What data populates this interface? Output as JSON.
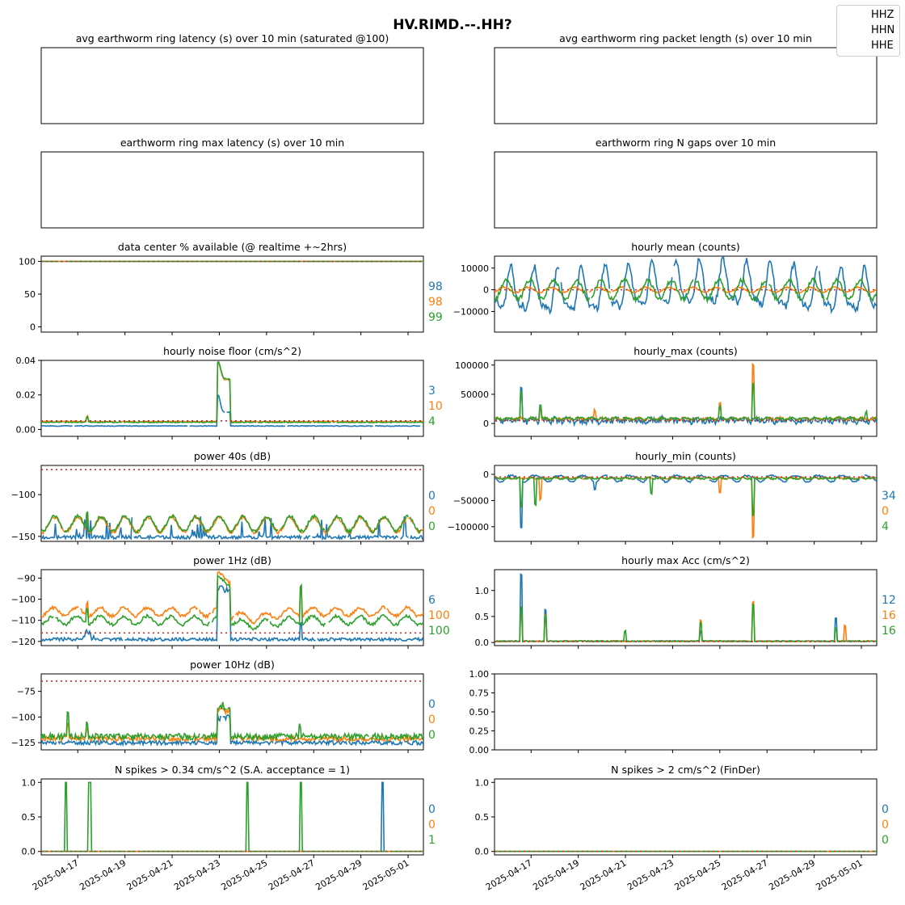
{
  "title": "HV.RIMD.--.HH?",
  "legend": [
    "HHZ",
    "HHN",
    "HHE"
  ],
  "colors": {
    "HHZ": "#1f77b4",
    "HHN": "#ff7f0e",
    "HHE": "#2ca02c",
    "threshold": "#d62728"
  },
  "x_ticks": [
    "2025-04-17",
    "2025-04-19",
    "2025-04-21",
    "2025-04-23",
    "2025-04-25",
    "2025-04-27",
    "2025-04-29",
    "2025-05-01"
  ],
  "chart_data": [
    {
      "id": "p0",
      "title": "avg earthworm ring latency (s)   over 10 min (saturated @100)",
      "type": "line",
      "empty": true,
      "show_ticks": false,
      "summary": []
    },
    {
      "id": "p1",
      "title": "avg earthworm ring packet length (s)   over 10 min",
      "type": "line",
      "empty": true,
      "show_ticks": false,
      "summary": []
    },
    {
      "id": "p2",
      "title": "earthworm ring max latency (s)   over 10 min",
      "type": "line",
      "empty": true,
      "show_ticks": false,
      "summary": []
    },
    {
      "id": "p3",
      "title": "earthworm ring N gaps   over 10 min",
      "type": "line",
      "empty": true,
      "show_ticks": false,
      "summary": []
    },
    {
      "id": "p4",
      "title": "data center % available (@ realtime +~2hrs)",
      "type": "line",
      "ylim": [
        -8,
        108
      ],
      "yticks": [
        0,
        50,
        100
      ],
      "ytick_labels": [
        "0",
        "50",
        "100"
      ],
      "threshold": 100,
      "summary": [
        "98",
        "98",
        "99"
      ],
      "series_desc": {
        "HHZ": "≈100 flat",
        "HHN": "≈100 flat",
        "HHE": "≈100 flat"
      }
    },
    {
      "id": "p5",
      "title": "hourly mean (counts)",
      "type": "line",
      "ylim": [
        -19500,
        15500
      ],
      "yticks": [
        -10000,
        0,
        10000
      ],
      "ytick_labels": [
        "−10000",
        "0",
        "10000"
      ],
      "threshold": 0,
      "summary": [],
      "series_desc": {
        "HHZ": "daily oscillation ±12000",
        "HHN": "near 0 ±1500",
        "HHE": "daily oscillation ±6000"
      }
    },
    {
      "id": "p6",
      "title": "hourly noise floor (cm/s^2)",
      "type": "line",
      "ylim": [
        -0.004,
        0.04
      ],
      "yticks": [
        0.0,
        0.02,
        0.04
      ],
      "ytick_labels": [
        "0.00",
        "0.02",
        "0.04"
      ],
      "threshold": 0.005,
      "summary": [
        "3",
        "10",
        "4"
      ],
      "series_desc": {
        "HHZ": "≈0.002, peak 0.018 on 2025-04-22",
        "HHN": "≈0.0045, peak 0.037 on 2025-04-22",
        "HHE": "≈0.004, peak 0.038 on 2025-04-22"
      }
    },
    {
      "id": "p7",
      "title": "hourly_max (counts)",
      "type": "line",
      "ylim": [
        -22000,
        108000
      ],
      "yticks": [
        0,
        50000,
        100000
      ],
      "ytick_labels": [
        "0",
        "50000",
        "100000"
      ],
      "threshold": 5000,
      "summary": [],
      "series_desc": {
        "HHZ": "≈0–10000, peak 60000 on 2025-04-16",
        "HHN": "≈5000, peak 98000 on 2025-04-26",
        "HHE": "≈5000, peak 65000 on 2025-04-26"
      }
    },
    {
      "id": "p8",
      "title": "power 40s (dB)",
      "type": "line",
      "ylim": [
        -156,
        -65
      ],
      "yticks": [
        -100,
        -150
      ],
      "ytick_labels": [
        "−100",
        "−150"
      ],
      "threshold": -70,
      "summary": [
        "0",
        "0",
        "0"
      ],
      "series_desc": {
        "HHZ": "≈−150 with spikes to −115",
        "HHN": "daily cycle −145 to −125",
        "HHE": "daily cycle −145 to −125"
      }
    },
    {
      "id": "p9",
      "title": "hourly_min (counts)",
      "type": "line",
      "ylim": [
        -128000,
        17000
      ],
      "yticks": [
        0,
        -50000,
        -100000
      ],
      "ytick_labels": [
        "0",
        "−50000",
        "−100000"
      ],
      "threshold": -5000,
      "summary": [
        "34",
        "0",
        "4"
      ],
      "series_desc": {
        "HHZ": "≈−5000, dip −95000 on 2025-04-16",
        "HHN": "≈−5000, dip −118000 on 2025-04-26",
        "HHE": "≈−5000, dip −75000 on 2025-04-26"
      }
    },
    {
      "id": "p10",
      "title": "power 1Hz (dB)",
      "type": "line",
      "ylim": [
        -122,
        -86
      ],
      "yticks": [
        -90,
        -100,
        -110,
        -120
      ],
      "ytick_labels": [
        "−90",
        "−100",
        "−110",
        "−120"
      ],
      "threshold": -116,
      "summary": [
        "6",
        "100",
        "100"
      ],
      "series_desc": {
        "HHZ": "≈−119, peak −93 on 2025-04-22",
        "HHN": "≈−106, peak −89 on 2025-04-22",
        "HHE": "≈−110, peak −91 on 2025-04-22"
      }
    },
    {
      "id": "p11",
      "title": "hourly max Acc (cm/s^2)",
      "type": "line",
      "ylim": [
        -0.06,
        1.4
      ],
      "yticks": [
        0.0,
        0.5,
        1.0
      ],
      "ytick_labels": [
        "0.0",
        "0.5",
        "1.0"
      ],
      "threshold": 0.02,
      "summary": [
        "12",
        "16",
        "16"
      ],
      "series_desc": {
        "HHZ": "≈0.02, peak 1.3 on 2025-04-16",
        "HHN": "≈0.02, peak 0.8 on 2025-04-26",
        "HHE": "≈0.02, peak 0.7 on 2025-04-26"
      }
    },
    {
      "id": "p12",
      "title": "power 10Hz (dB)",
      "type": "line",
      "ylim": [
        -132,
        -58
      ],
      "yticks": [
        -75,
        -100,
        -125
      ],
      "ytick_labels": [
        "−75",
        "−100",
        "−125"
      ],
      "threshold": -65,
      "summary": [
        "0",
        "0",
        "0"
      ],
      "series_desc": {
        "HHZ": "≈−125, peak −95 on 2025-04-22",
        "HHN": "≈−120, peak −90 on 2025-04-22",
        "HHE": "≈−118, peak −89 on 2025-04-22"
      }
    },
    {
      "id": "p13",
      "title": "",
      "type": "line",
      "empty": true,
      "ylim": [
        0,
        1
      ],
      "yticks": [
        0.0,
        0.25,
        0.5,
        0.75,
        1.0
      ],
      "ytick_labels": [
        "0.00",
        "0.25",
        "0.50",
        "0.75",
        "1.00"
      ],
      "summary": []
    },
    {
      "id": "p14",
      "title": "N spikes > 0.34 cm/s^2 (S.A. acceptance = 1)",
      "type": "line",
      "ylim": [
        -0.05,
        1.05
      ],
      "yticks": [
        0.0,
        0.5,
        1.0
      ],
      "ytick_labels": [
        "0.0",
        "0.5",
        "1.0"
      ],
      "threshold": 0,
      "summary": [
        "0",
        "0",
        "1"
      ],
      "series_desc": {
        "HHZ": "0, spike to 1 on 2025-04-29",
        "HHN": "0",
        "HHE": "0, spikes to 1 on 2025-04-16, 04-17, 04-24, 04-26"
      }
    },
    {
      "id": "p15",
      "title": "N spikes > 2 cm/s^2 (FinDer)",
      "type": "line",
      "ylim": [
        -0.05,
        1.05
      ],
      "yticks": [
        0.0,
        0.5,
        1.0
      ],
      "ytick_labels": [
        "0.0",
        "0.5",
        "1.0"
      ],
      "threshold": 0,
      "summary": [
        "0",
        "0",
        "0"
      ],
      "series_desc": {
        "HHZ": "0",
        "HHN": "0",
        "HHE": "0"
      }
    }
  ]
}
